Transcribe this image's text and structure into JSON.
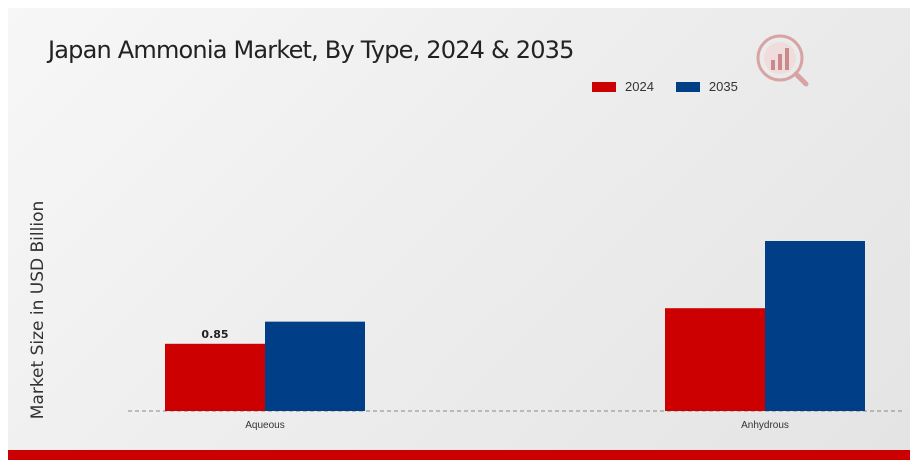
{
  "colors": {
    "accent": "#cc0000",
    "series_2024": "#cc0000",
    "series_2035": "#003f87"
  },
  "logo": {
    "icon": "market-research-logo-icon"
  },
  "chart_data": {
    "type": "bar",
    "title": "Japan Ammonia Market, By Type, 2024 & 2035",
    "xlabel": "",
    "ylabel": "Market Size in USD Billion",
    "categories": [
      "Aqueous",
      "Anhydrous"
    ],
    "series": [
      {
        "name": "2024",
        "color": "#cc0000",
        "values": [
          0.85,
          1.3
        ]
      },
      {
        "name": "2035",
        "color": "#003f87",
        "values": [
          1.13,
          2.15
        ]
      }
    ],
    "data_labels": [
      {
        "series": 0,
        "category": 0,
        "text": "0.85"
      }
    ],
    "ylim": [
      0,
      2.15
    ],
    "grid": false,
    "legend_position": "top-right"
  }
}
